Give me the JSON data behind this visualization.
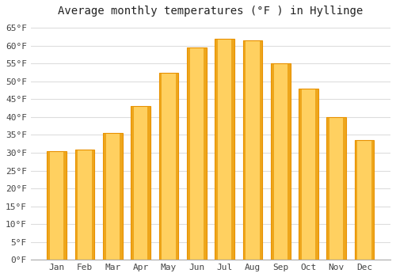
{
  "title": "Average monthly temperatures (°F ) in Hyllinge",
  "months": [
    "Jan",
    "Feb",
    "Mar",
    "Apr",
    "May",
    "Jun",
    "Jul",
    "Aug",
    "Sep",
    "Oct",
    "Nov",
    "Dec"
  ],
  "values": [
    30.5,
    31.0,
    35.5,
    43.0,
    52.5,
    59.5,
    62.0,
    61.5,
    55.0,
    48.0,
    40.0,
    33.5
  ],
  "bar_color_center": "#FFD060",
  "bar_color_edge": "#E89000",
  "background_color": "#FFFFFF",
  "grid_color": "#DDDDDD",
  "text_color": "#444444",
  "title_color": "#222222",
  "ylim": [
    0,
    67
  ],
  "yticks": [
    0,
    5,
    10,
    15,
    20,
    25,
    30,
    35,
    40,
    45,
    50,
    55,
    60,
    65
  ],
  "title_fontsize": 10,
  "tick_fontsize": 8,
  "bar_width": 0.7
}
